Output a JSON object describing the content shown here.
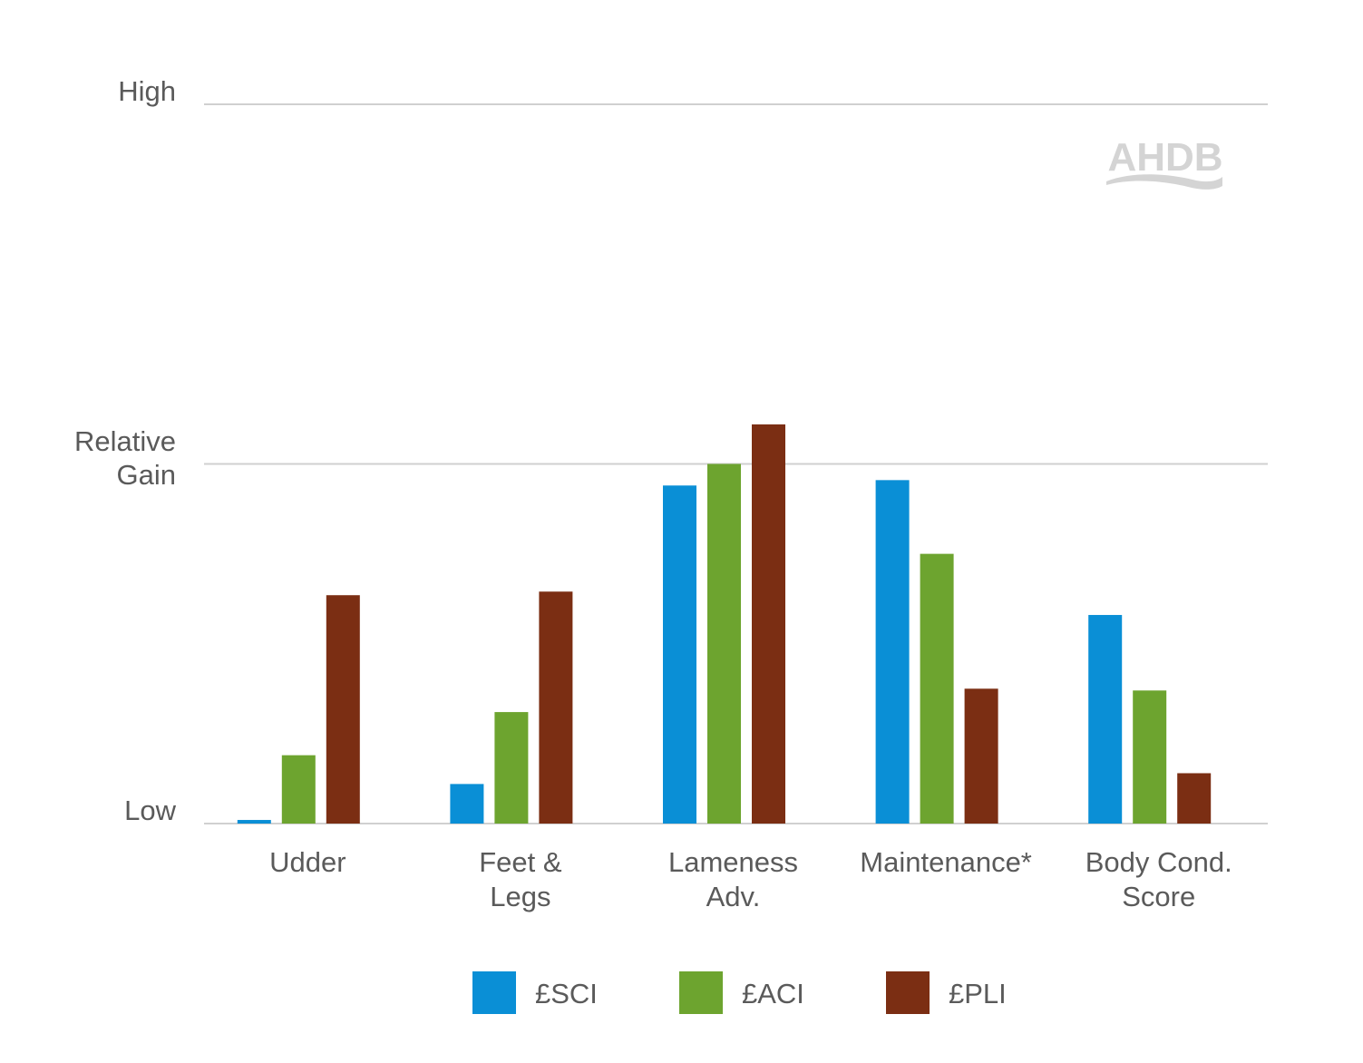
{
  "chart_data": {
    "type": "bar",
    "categories": [
      [
        "Udder"
      ],
      [
        "Feet &",
        "Legs"
      ],
      [
        "Lameness",
        "Adv."
      ],
      [
        "Maintenance*"
      ],
      [
        "Body Cond.",
        "Score"
      ]
    ],
    "y_tick_labels": [
      {
        "value": 0,
        "lines": [
          "Low"
        ]
      },
      {
        "value": 1,
        "lines": [
          "Relative",
          "Gain"
        ]
      },
      {
        "value": 2,
        "lines": [
          "High"
        ]
      }
    ],
    "ylim": [
      0,
      2
    ],
    "grid": true,
    "legend_position": "bottom",
    "series": [
      {
        "name": "£SCI",
        "color": "#0a8fd6",
        "values": [
          0.01,
          0.11,
          0.94,
          0.955,
          0.58
        ]
      },
      {
        "name": "£ACI",
        "color": "#6da42f",
        "values": [
          0.19,
          0.31,
          1.0,
          0.75,
          0.37
        ]
      },
      {
        "name": "£PLI",
        "color": "#7b2e13",
        "values": [
          0.635,
          0.645,
          1.11,
          0.375,
          0.14
        ]
      }
    ]
  },
  "logo": {
    "text": "AHDB"
  }
}
